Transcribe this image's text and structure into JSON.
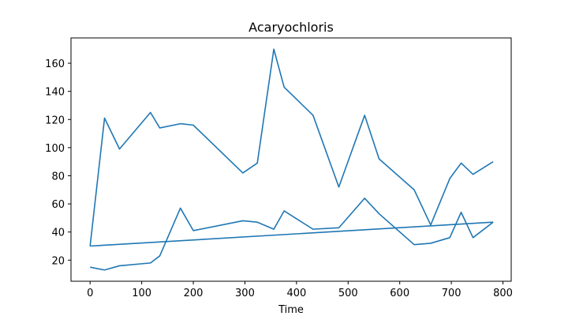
{
  "chart_data": {
    "type": "line",
    "title": "Acaryochloris",
    "xlabel": "Time",
    "ylabel": "",
    "xlim": [
      -37,
      816
    ],
    "ylim": [
      5,
      178
    ],
    "xticks": [
      0,
      100,
      200,
      300,
      400,
      500,
      600,
      700,
      800
    ],
    "yticks": [
      20,
      40,
      60,
      80,
      100,
      120,
      140,
      160
    ],
    "grid": false,
    "series_color": "#1f77b4",
    "series": [
      {
        "x": [
          0,
          28,
          57,
          117,
          135,
          175,
          200,
          296,
          324,
          356,
          376,
          432,
          482,
          532,
          560,
          628,
          660,
          697,
          719,
          742,
          781
        ],
        "y": [
          30,
          121,
          99,
          125,
          114,
          117,
          116,
          82,
          89,
          170,
          143,
          123,
          72,
          123,
          92,
          70,
          45,
          78,
          89,
          81,
          90
        ]
      },
      {
        "x": [
          0,
          28,
          57,
          117,
          135,
          175,
          200,
          296,
          324,
          356,
          376,
          432,
          482,
          532,
          560,
          628,
          660,
          697,
          719,
          742,
          781
        ],
        "y": [
          15,
          13,
          16,
          18,
          23,
          57,
          41,
          48,
          47,
          42,
          55,
          42,
          43,
          64,
          53,
          31,
          32,
          36,
          54,
          36,
          47
        ]
      },
      {
        "x": [
          781,
          0
        ],
        "y": [
          47,
          30
        ]
      }
    ]
  }
}
